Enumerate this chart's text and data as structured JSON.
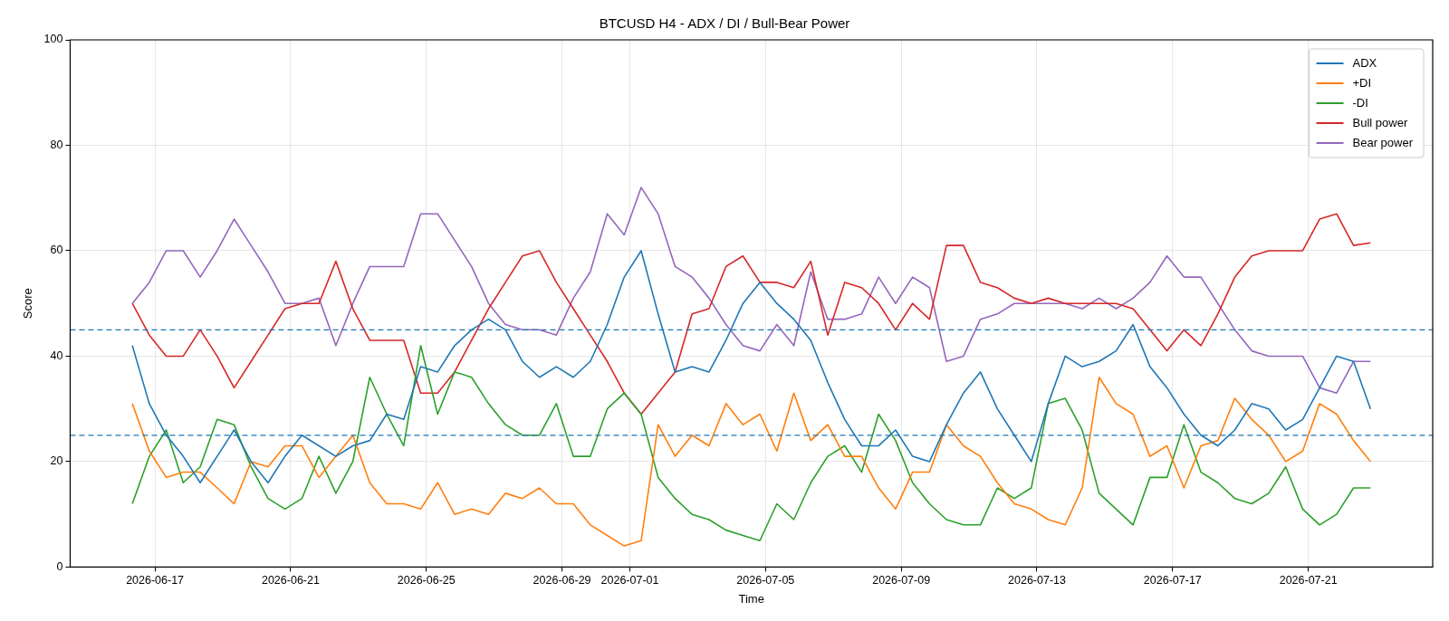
{
  "chart_data": {
    "type": "line",
    "title": "BTCUSD H4 - ADX / DI / Bull-Bear Power",
    "xlabel": "Time",
    "ylabel": "Score",
    "x": [
      "2026-06-16T08:00",
      "2026-06-16T20:00",
      "2026-06-17T08:00",
      "2026-06-17T20:00",
      "2026-06-18T08:00",
      "2026-06-18T20:00",
      "2026-06-19T08:00",
      "2026-06-19T20:00",
      "2026-06-20T08:00",
      "2026-06-20T20:00",
      "2026-06-21T08:00",
      "2026-06-21T20:00",
      "2026-06-22T08:00",
      "2026-06-22T20:00",
      "2026-06-23T08:00",
      "2026-06-23T20:00",
      "2026-06-24T08:00",
      "2026-06-24T20:00",
      "2026-06-25T08:00",
      "2026-06-25T20:00",
      "2026-06-26T08:00",
      "2026-06-26T20:00",
      "2026-06-27T08:00",
      "2026-06-27T20:00",
      "2026-06-28T08:00",
      "2026-06-28T20:00",
      "2026-06-29T08:00",
      "2026-06-29T20:00",
      "2026-06-30T08:00",
      "2026-06-30T20:00",
      "2026-07-01T08:00",
      "2026-07-01T20:00",
      "2026-07-02T08:00",
      "2026-07-02T20:00",
      "2026-07-03T08:00",
      "2026-07-03T20:00",
      "2026-07-04T08:00",
      "2026-07-04T20:00",
      "2026-07-05T08:00",
      "2026-07-05T20:00",
      "2026-07-06T08:00",
      "2026-07-06T20:00",
      "2026-07-07T08:00",
      "2026-07-07T20:00",
      "2026-07-08T08:00",
      "2026-07-08T20:00",
      "2026-07-09T08:00",
      "2026-07-09T20:00",
      "2026-07-10T08:00",
      "2026-07-10T20:00",
      "2026-07-11T08:00",
      "2026-07-11T20:00",
      "2026-07-12T08:00",
      "2026-07-12T20:00",
      "2026-07-13T08:00",
      "2026-07-13T20:00",
      "2026-07-14T08:00",
      "2026-07-14T20:00",
      "2026-07-15T08:00",
      "2026-07-15T20:00",
      "2026-07-16T08:00",
      "2026-07-16T20:00",
      "2026-07-17T08:00",
      "2026-07-17T20:00",
      "2026-07-18T08:00",
      "2026-07-18T20:00",
      "2026-07-19T08:00",
      "2026-07-19T20:00",
      "2026-07-20T08:00",
      "2026-07-20T20:00",
      "2026-07-21T08:00",
      "2026-07-21T20:00",
      "2026-07-22T08:00",
      "2026-07-22T20:00"
    ],
    "series": [
      {
        "name": "ADX",
        "color": "#1f77b4",
        "values": [
          42,
          31,
          25,
          21,
          16,
          21,
          26,
          20,
          16,
          21,
          25,
          23,
          21,
          23,
          24,
          29,
          28,
          38,
          37,
          42,
          45,
          47,
          45,
          39,
          36,
          38,
          36,
          39,
          46,
          55,
          60,
          48,
          37,
          38,
          37,
          43,
          50,
          54,
          50,
          47,
          43,
          35,
          28,
          23,
          23,
          26,
          21,
          20,
          27,
          33,
          37,
          30,
          25,
          20,
          31,
          40,
          38,
          39,
          41,
          46,
          38,
          34,
          29,
          25,
          23,
          26,
          31,
          30,
          26,
          28,
          34,
          40,
          39,
          30
        ]
      },
      {
        "name": "+DI",
        "color": "#ff7f0e",
        "values": [
          31,
          22,
          17,
          18,
          18,
          15,
          12,
          20,
          19,
          23,
          23,
          17,
          21,
          25,
          16,
          12,
          12,
          11,
          16,
          10,
          11,
          10,
          14,
          13,
          15,
          12,
          12,
          8,
          6,
          4,
          5,
          27,
          21,
          25,
          23,
          31,
          27,
          29,
          22,
          33,
          24,
          27,
          21,
          21,
          15,
          11,
          18,
          18,
          27,
          23,
          21,
          16,
          12,
          11,
          9,
          8,
          15,
          36,
          31,
          29,
          21,
          23,
          15,
          23,
          24,
          32,
          28,
          25,
          20,
          22,
          31,
          29,
          24,
          20
        ]
      },
      {
        "name": "-DI",
        "color": "#2ca02c",
        "values": [
          12,
          21,
          26,
          16,
          19,
          28,
          27,
          19,
          13,
          11,
          13,
          21,
          14,
          20,
          36,
          29,
          23,
          42,
          29,
          37,
          36,
          31,
          27,
          25,
          25,
          31,
          21,
          21,
          30,
          33,
          29,
          17,
          13,
          10,
          9,
          7,
          6,
          5,
          12,
          9,
          16,
          21,
          23,
          18,
          29,
          24,
          16,
          12,
          9,
          8,
          8,
          15,
          13,
          15,
          31,
          32,
          26,
          14,
          11,
          8,
          17,
          17,
          27,
          18,
          16,
          13,
          12,
          14,
          19,
          11,
          8,
          10,
          15,
          15
        ]
      },
      {
        "name": "Bull power",
        "color": "#d62728",
        "values": [
          50,
          44,
          40,
          40,
          45,
          40,
          34,
          39,
          44,
          49,
          50,
          50,
          58,
          49,
          43,
          43,
          43,
          33,
          33,
          37,
          43,
          49,
          54,
          59,
          60,
          54,
          49,
          44,
          39,
          33,
          29,
          33,
          37,
          48,
          49,
          57,
          59,
          54,
          54,
          53,
          58,
          44,
          54,
          53,
          50,
          45,
          50,
          47,
          61,
          61,
          54,
          53,
          51,
          50,
          51,
          50,
          50,
          50,
          50,
          49,
          45,
          41,
          45,
          42,
          48,
          55,
          59,
          60,
          60,
          60,
          66,
          67,
          61,
          61.5
        ]
      },
      {
        "name": "Bear power",
        "color": "#9467bd",
        "values": [
          50,
          54,
          60,
          60,
          55,
          60,
          66,
          61,
          56,
          50,
          50,
          51,
          42,
          50,
          57,
          57,
          57,
          67,
          67,
          62,
          57,
          50,
          46,
          45,
          45,
          44,
          51,
          56,
          67,
          63,
          72,
          67,
          57,
          55,
          51,
          46,
          42,
          41,
          46,
          42,
          56,
          47,
          47,
          48,
          55,
          50,
          55,
          53,
          39,
          40,
          47,
          48,
          50,
          50,
          50,
          50,
          49,
          51,
          49,
          51,
          54,
          59,
          55,
          55,
          50,
          45,
          41,
          40,
          40,
          40,
          34,
          33,
          39,
          39
        ]
      }
    ],
    "xlim": [
      "2026-06-14T12:00",
      "2026-07-24T16:00"
    ],
    "xticks": [
      "2026-06-17",
      "2026-06-21",
      "2026-06-25",
      "2026-06-29",
      "2026-07-01",
      "2026-07-05",
      "2026-07-09",
      "2026-07-13",
      "2026-07-17",
      "2026-07-21"
    ],
    "ylim": [
      0,
      100
    ],
    "yticks": [
      0,
      20,
      40,
      60,
      80,
      100
    ],
    "ref_lines": [
      {
        "axis": "y",
        "value": 45,
        "color": "#1f77b4",
        "line_style": "dashed"
      },
      {
        "axis": "y",
        "value": 25,
        "color": "#1f77b4",
        "line_style": "dashed"
      }
    ],
    "grid": true,
    "legend": "top right",
    "line_style": "solid"
  }
}
